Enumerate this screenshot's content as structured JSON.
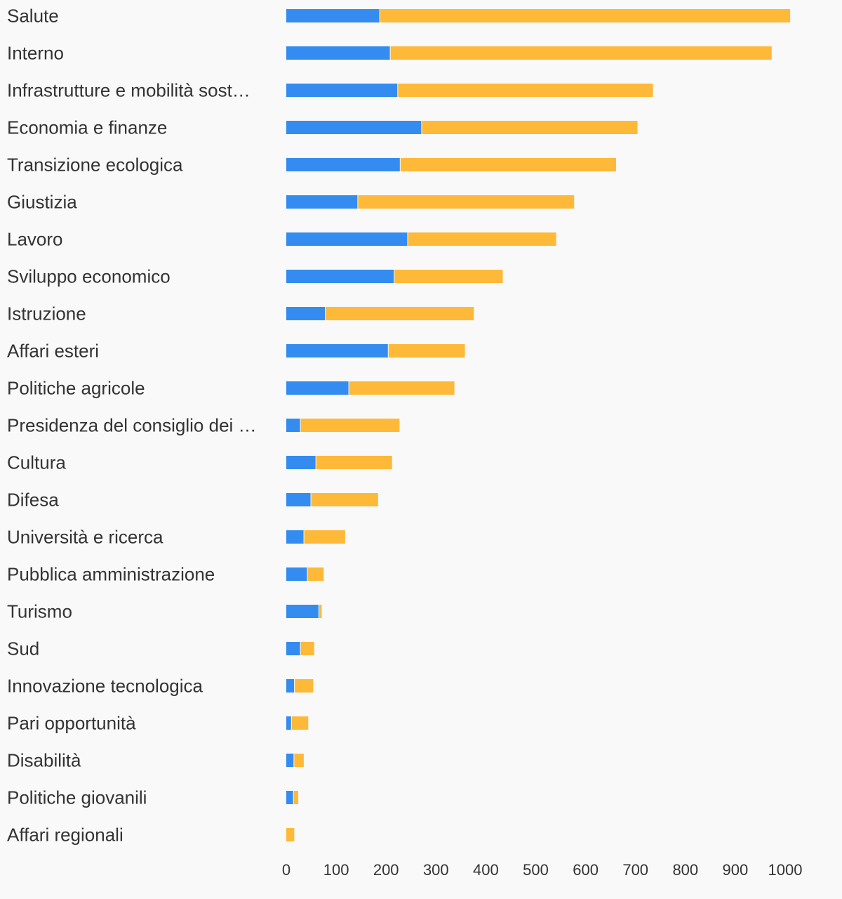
{
  "chart_data": {
    "type": "bar",
    "orientation": "horizontal",
    "stacked": true,
    "title": "",
    "xlabel": "",
    "ylabel": "",
    "xlim": [
      0,
      1000
    ],
    "ticks": [
      "0",
      "100",
      "200",
      "300",
      "400",
      "500",
      "600",
      "700",
      "800",
      "900",
      "1000"
    ],
    "grid": false,
    "legend": "none",
    "categories": [
      {
        "label": "Salute",
        "display": "Salute"
      },
      {
        "label": "Interno",
        "display": "Interno"
      },
      {
        "label": "Infrastrutture e mobilità sostenibili",
        "display": "Infrastrutture e mobilità sost…"
      },
      {
        "label": "Economia e finanze",
        "display": "Economia e finanze"
      },
      {
        "label": "Transizione ecologica",
        "display": "Transizione ecologica"
      },
      {
        "label": "Giustizia",
        "display": "Giustizia"
      },
      {
        "label": "Lavoro",
        "display": "Lavoro"
      },
      {
        "label": "Sviluppo economico",
        "display": "Sviluppo economico"
      },
      {
        "label": "Istruzione",
        "display": "Istruzione"
      },
      {
        "label": "Affari esteri",
        "display": "Affari esteri"
      },
      {
        "label": "Politiche agricole",
        "display": "Politiche agricole"
      },
      {
        "label": "Presidenza del consiglio dei ministri",
        "display": "Presidenza del consiglio dei …"
      },
      {
        "label": "Cultura",
        "display": "Cultura"
      },
      {
        "label": "Difesa",
        "display": "Difesa"
      },
      {
        "label": "Università e ricerca",
        "display": "Università e ricerca"
      },
      {
        "label": "Pubblica amministrazione",
        "display": "Pubblica amministrazione"
      },
      {
        "label": "Turismo",
        "display": "Turismo"
      },
      {
        "label": "Sud",
        "display": "Sud"
      },
      {
        "label": "Innovazione tecnologica",
        "display": "Innovazione tecnologica"
      },
      {
        "label": "Pari opportunità",
        "display": "Pari opportunità"
      },
      {
        "label": "Disabilità",
        "display": "Disabilità"
      },
      {
        "label": "Politiche giovanili",
        "display": "Politiche giovanili"
      },
      {
        "label": "Affari regionali",
        "display": "Affari regionali"
      }
    ],
    "series": [
      {
        "color": "#348cf0",
        "values": [
          188,
          209,
          224,
          272,
          229,
          144,
          244,
          217,
          79,
          205,
          126,
          29,
          60,
          50,
          36,
          43,
          66,
          29,
          17,
          11,
          16,
          15,
          0
        ]
      },
      {
        "color": "#ffb938",
        "values": [
          822,
          764,
          511,
          432,
          432,
          433,
          297,
          217,
          297,
          153,
          211,
          198,
          152,
          134,
          82,
          32,
          5,
          27,
          37,
          33,
          19,
          9,
          16
        ]
      }
    ]
  }
}
